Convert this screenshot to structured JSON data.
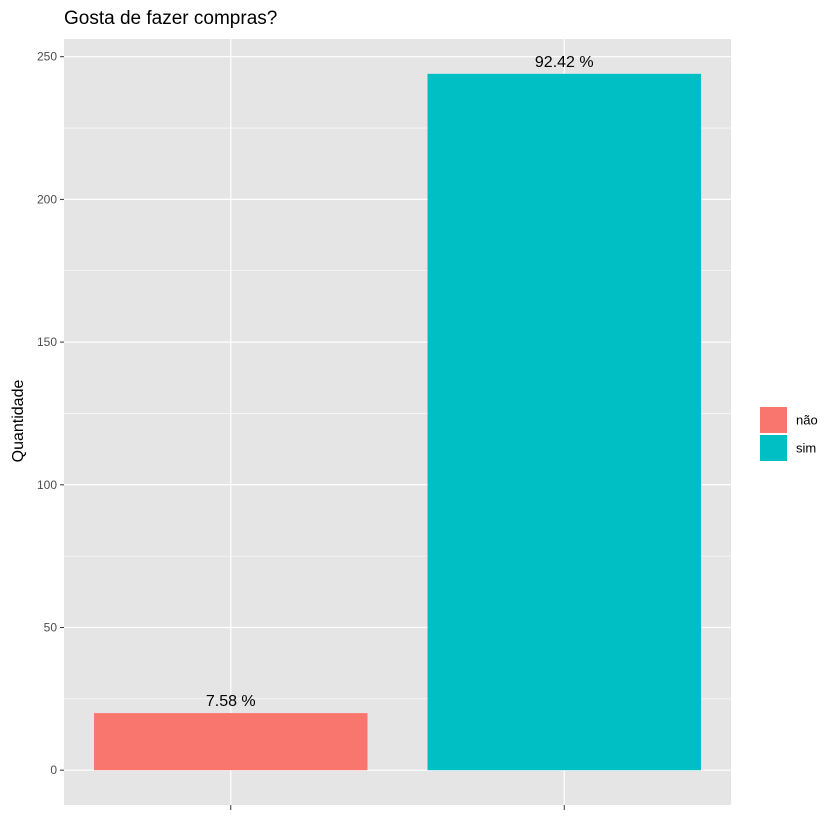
{
  "chart_data": {
    "type": "bar",
    "title": "Gosta de fazer compras?",
    "xlabel": "",
    "ylabel": "Quantidade",
    "categories": [
      "não",
      "sim"
    ],
    "values": [
      20,
      244
    ],
    "data_labels": [
      "7.58 %",
      "92.42 %"
    ],
    "colors": [
      "#F8766D",
      "#00BFC4"
    ],
    "ylim": [
      -12.2,
      256.2
    ],
    "yticks": [
      0,
      50,
      100,
      150,
      200,
      250
    ],
    "ytick_labels": [
      "0",
      "50",
      "100",
      "150",
      "200",
      "250"
    ],
    "grid": true,
    "panel_background": "#E5E5E5",
    "grid_color": "#FFFFFF",
    "legend": {
      "position": "right",
      "entries": [
        {
          "label": "não",
          "color": "#F8766D"
        },
        {
          "label": "sim",
          "color": "#00BFC4"
        }
      ]
    }
  }
}
